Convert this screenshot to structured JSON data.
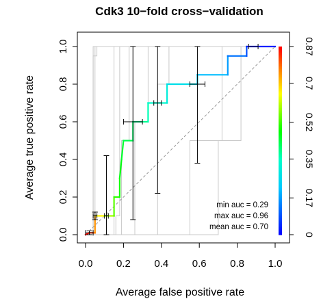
{
  "chart_data": {
    "type": "line",
    "title": "Cdk3 10−fold cross−validation",
    "xlabel": "Average false positive rate",
    "ylabel": "Average true positive rate",
    "xlim": [
      0,
      1
    ],
    "ylim": [
      0,
      1
    ],
    "x_ticks": [
      "0.0",
      "0.2",
      "0.4",
      "0.6",
      "0.8",
      "1.0"
    ],
    "x_tick_values": [
      0,
      0.2,
      0.4,
      0.6,
      0.8,
      1.0
    ],
    "y_ticks": [
      "0.0",
      "0.2",
      "0.4",
      "0.6",
      "0.8",
      "1.0"
    ],
    "y_tick_values": [
      0,
      0.2,
      0.4,
      0.6,
      0.8,
      1.0
    ],
    "colorbar": {
      "ticks": [
        "0",
        "0.17",
        "0.35",
        "0.52",
        "0.7",
        "0.87"
      ],
      "tick_values": [
        0,
        0.17,
        0.35,
        0.52,
        0.7,
        0.87
      ],
      "range": [
        0,
        0.87
      ]
    },
    "grid": false,
    "diagonal": true,
    "stats": {
      "min_auc": "min auc = 0.29",
      "max_auc": "max auc = 0.96",
      "mean_auc": "mean auc = 0.70"
    },
    "average_curve": [
      {
        "x": 0,
        "y": 0,
        "c": 0.87
      },
      {
        "x": 0.02,
        "y": 0.01,
        "c": 0.85
      },
      {
        "x": 0.05,
        "y": 0.01,
        "c": 0.8
      },
      {
        "x": 0.05,
        "y": 0.1,
        "c": 0.7
      },
      {
        "x": 0.1,
        "y": 0.1,
        "c": 0.62
      },
      {
        "x": 0.15,
        "y": 0.1,
        "c": 0.56
      },
      {
        "x": 0.15,
        "y": 0.2,
        "c": 0.52
      },
      {
        "x": 0.18,
        "y": 0.2,
        "c": 0.5
      },
      {
        "x": 0.18,
        "y": 0.3,
        "c": 0.48
      },
      {
        "x": 0.19,
        "y": 0.4,
        "c": 0.46
      },
      {
        "x": 0.2,
        "y": 0.5,
        "c": 0.44
      },
      {
        "x": 0.25,
        "y": 0.5,
        "c": 0.42
      },
      {
        "x": 0.25,
        "y": 0.6,
        "c": 0.4
      },
      {
        "x": 0.33,
        "y": 0.6,
        "c": 0.37
      },
      {
        "x": 0.33,
        "y": 0.7,
        "c": 0.35
      },
      {
        "x": 0.43,
        "y": 0.7,
        "c": 0.32
      },
      {
        "x": 0.43,
        "y": 0.8,
        "c": 0.29
      },
      {
        "x": 0.59,
        "y": 0.8,
        "c": 0.25
      },
      {
        "x": 0.59,
        "y": 0.85,
        "c": 0.22
      },
      {
        "x": 0.75,
        "y": 0.85,
        "c": 0.19
      },
      {
        "x": 0.75,
        "y": 0.95,
        "c": 0.15
      },
      {
        "x": 0.85,
        "y": 0.95,
        "c": 0.1
      },
      {
        "x": 0.85,
        "y": 1.0,
        "c": 0.07
      },
      {
        "x": 1.0,
        "y": 1.0,
        "c": 0.0
      }
    ],
    "fold_curves": [
      [
        [
          0,
          0
        ],
        [
          0.04,
          0
        ],
        [
          0.04,
          1.0
        ],
        [
          1.0,
          1.0
        ]
      ],
      [
        [
          0,
          0
        ],
        [
          0.05,
          0
        ],
        [
          0.05,
          1.0
        ],
        [
          1.0,
          1.0
        ]
      ],
      [
        [
          0,
          0
        ],
        [
          0.15,
          0
        ],
        [
          0.15,
          1.0
        ],
        [
          1.0,
          1.0
        ]
      ],
      [
        [
          0,
          0
        ],
        [
          0.16,
          0
        ],
        [
          0.16,
          0.1
        ],
        [
          0.18,
          0.1
        ],
        [
          0.18,
          1.0
        ],
        [
          1.0,
          1.0
        ]
      ],
      [
        [
          0,
          0
        ],
        [
          0.19,
          0
        ],
        [
          0.19,
          0.5
        ],
        [
          0.23,
          0.5
        ],
        [
          0.23,
          1.0
        ],
        [
          1.0,
          1.0
        ]
      ],
      [
        [
          0,
          0
        ],
        [
          0.26,
          0
        ],
        [
          0.26,
          0.6
        ],
        [
          0.33,
          0.6
        ],
        [
          0.33,
          1.0
        ],
        [
          1.0,
          1.0
        ]
      ],
      [
        [
          0,
          0
        ],
        [
          0.38,
          0
        ],
        [
          0.38,
          0.8
        ],
        [
          0.44,
          0.8
        ],
        [
          0.44,
          1.0
        ],
        [
          1.0,
          1.0
        ]
      ],
      [
        [
          0,
          0
        ],
        [
          0.55,
          0
        ],
        [
          0.55,
          0.5
        ],
        [
          0.72,
          0.5
        ],
        [
          0.72,
          1.0
        ],
        [
          1.0,
          1.0
        ]
      ],
      [
        [
          0,
          0
        ],
        [
          0.7,
          0
        ],
        [
          0.7,
          0.5
        ],
        [
          0.82,
          0.5
        ],
        [
          0.82,
          1.0
        ],
        [
          1.0,
          1.0
        ]
      ],
      [
        [
          0,
          0
        ],
        [
          0.04,
          0
        ],
        [
          0.04,
          0.95
        ],
        [
          0.06,
          0.95
        ],
        [
          0.06,
          1.0
        ],
        [
          1.0,
          1.0
        ]
      ]
    ],
    "error_bars": [
      {
        "x": 0.02,
        "y": 0.01,
        "yl": 0.0,
        "yh": 0.02,
        "xl": 0.0,
        "xh": 0.04
      },
      {
        "x": 0.05,
        "y": 0.1,
        "yl": 0.08,
        "yh": 0.12,
        "xl": 0.04,
        "xh": 0.06
      },
      {
        "x": 0.11,
        "y": 0.1,
        "yl": 0.0,
        "yh": 0.42,
        "xl": 0.1,
        "xh": 0.12
      },
      {
        "x": 0.25,
        "y": 0.6,
        "yl": 0.08,
        "yh": 1.0,
        "xl": 0.2,
        "xh": 0.3
      },
      {
        "x": 0.38,
        "y": 0.7,
        "yl": 0.22,
        "yh": 1.0,
        "xl": 0.36,
        "xh": 0.4
      },
      {
        "x": 0.59,
        "y": 0.8,
        "yl": 0.38,
        "yh": 1.0,
        "xl": 0.55,
        "xh": 0.63
      },
      {
        "x": 0.88,
        "y": 1.0,
        "yl": 1.0,
        "yh": 1.0,
        "xl": 0.86,
        "xh": 0.91
      }
    ]
  }
}
